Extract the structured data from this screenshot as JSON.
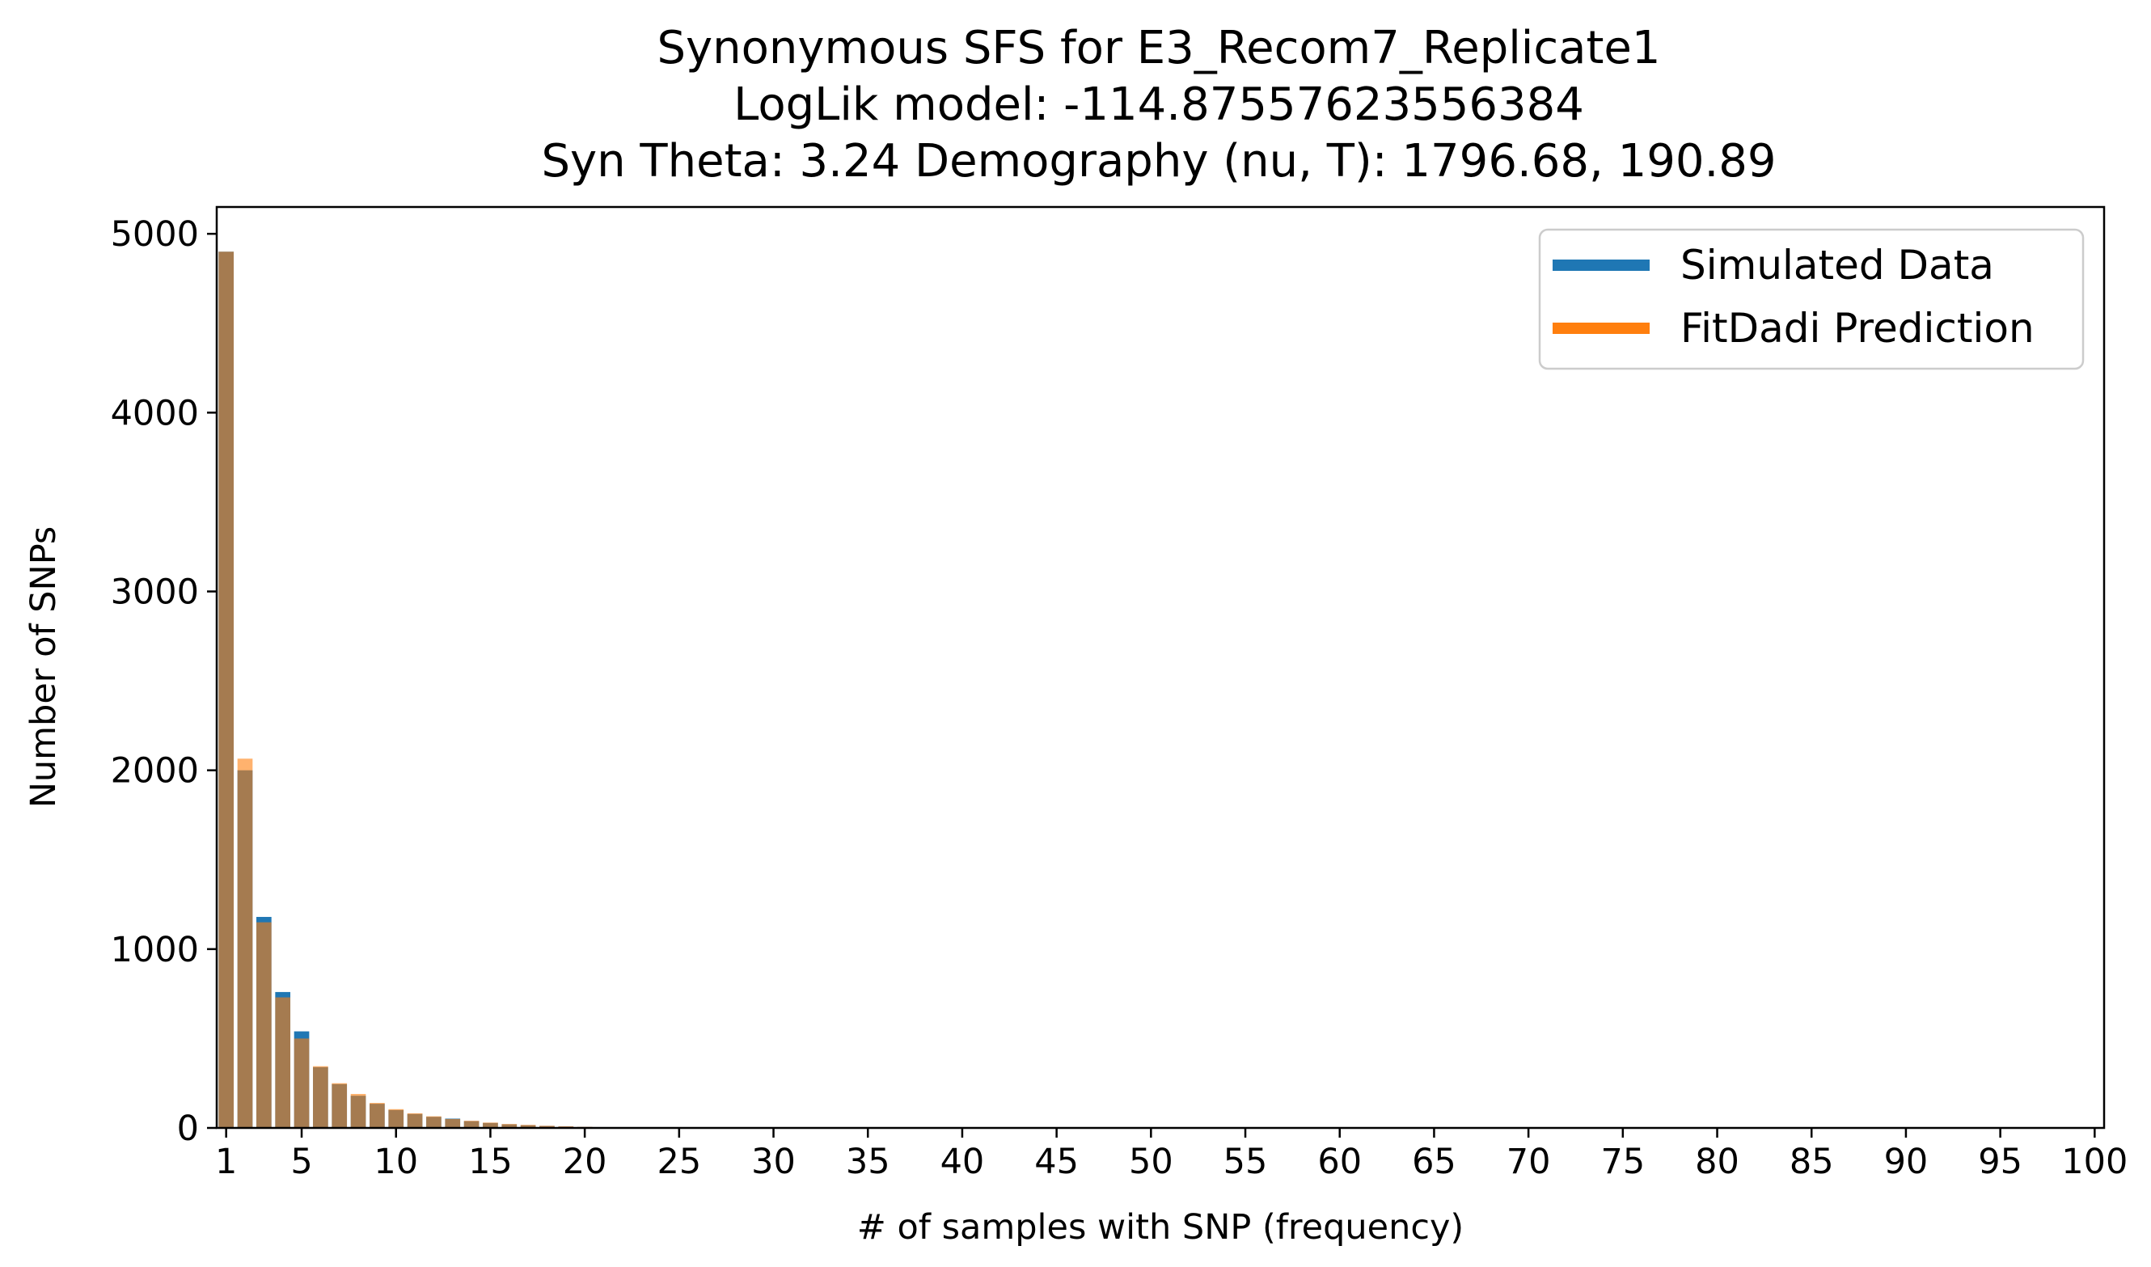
{
  "chart_data": {
    "type": "bar",
    "title_lines": [
      "Synonymous SFS for E3_Recom7_Replicate1",
      "LogLik model: -114.87557623556384",
      "Syn Theta: 3.24 Demography (nu, T): 1796.68, 190.89"
    ],
    "xlabel": "# of samples with SNP (frequency)",
    "ylabel": "Number of SNPs",
    "xlim": [
      0.5,
      100.5
    ],
    "ylim": [
      0,
      5150
    ],
    "xticks": [
      1,
      5,
      10,
      15,
      20,
      25,
      30,
      35,
      40,
      45,
      50,
      55,
      60,
      65,
      70,
      75,
      80,
      85,
      90,
      95,
      100
    ],
    "yticks": [
      0,
      1000,
      2000,
      3000,
      4000,
      5000
    ],
    "legend_position": "upper-right",
    "grid": false,
    "series": [
      {
        "name": "Simulated Data",
        "color": "#1f77b4",
        "alpha": 1.0,
        "values": [
          4900,
          2000,
          1180,
          760,
          540,
          340,
          245,
          180,
          135,
          100,
          78,
          62,
          52,
          38,
          28,
          20,
          15,
          11,
          8,
          5,
          4,
          3,
          2,
          2,
          1,
          1,
          1,
          1,
          0,
          0,
          0,
          0,
          0,
          0,
          0,
          0,
          0,
          0,
          0,
          0,
          0,
          0,
          0,
          0,
          0,
          0,
          0,
          0,
          0,
          0,
          0,
          0,
          0,
          0,
          0,
          0,
          0,
          0,
          0,
          0,
          0,
          0,
          0,
          0,
          0,
          0,
          0,
          0,
          0,
          0,
          0,
          0,
          0,
          0,
          0,
          0,
          0,
          0,
          0,
          0,
          0,
          0,
          0,
          0,
          0,
          0,
          0,
          0,
          0,
          0,
          0,
          0,
          0,
          0,
          0,
          0,
          0,
          0,
          0
        ]
      },
      {
        "name": "FitDadi Prediction",
        "color": "#ff7f0e",
        "alpha": 0.6,
        "values": [
          4900,
          2065,
          1150,
          730,
          500,
          345,
          250,
          190,
          140,
          105,
          82,
          65,
          50,
          40,
          30,
          22,
          17,
          12,
          9,
          6,
          4,
          3,
          2,
          2,
          1,
          1,
          1,
          1,
          0,
          0,
          0,
          0,
          0,
          0,
          0,
          0,
          0,
          0,
          0,
          0,
          0,
          0,
          0,
          0,
          0,
          0,
          0,
          0,
          0,
          0,
          0,
          0,
          0,
          0,
          0,
          0,
          0,
          0,
          0,
          0,
          0,
          0,
          0,
          0,
          0,
          0,
          0,
          0,
          0,
          0,
          0,
          0,
          0,
          0,
          0,
          0,
          0,
          0,
          0,
          0,
          0,
          0,
          0,
          0,
          0,
          0,
          0,
          0,
          0,
          0,
          0,
          0,
          0,
          0,
          0,
          0,
          0,
          0,
          0
        ]
      }
    ]
  }
}
